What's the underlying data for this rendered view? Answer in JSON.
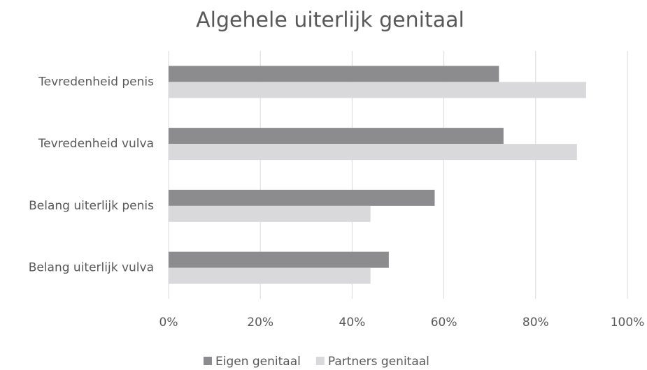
{
  "chart_data": {
    "type": "hbar",
    "title": "Algehele uiterlijk genitaal",
    "categories": [
      "Tevredenheid penis",
      "Tevredenheid vulva",
      "Belang uiterlijk penis",
      "Belang uiterlijk vulva"
    ],
    "series": [
      {
        "name": "Eigen genitaal",
        "color": "#8c8c8e",
        "values": [
          72,
          73,
          58,
          48
        ]
      },
      {
        "name": "Partners genitaal",
        "color": "#d9d9db",
        "values": [
          91,
          89,
          44,
          44
        ]
      }
    ],
    "xlim": [
      0,
      100
    ],
    "xticks": [
      {
        "value": 0,
        "label": "0%"
      },
      {
        "value": 20,
        "label": "20%"
      },
      {
        "value": 40,
        "label": "40%"
      },
      {
        "value": 60,
        "label": "60%"
      },
      {
        "value": 80,
        "label": "80%"
      },
      {
        "value": 100,
        "label": "100%"
      }
    ],
    "grid": true,
    "legend": "bottom"
  }
}
